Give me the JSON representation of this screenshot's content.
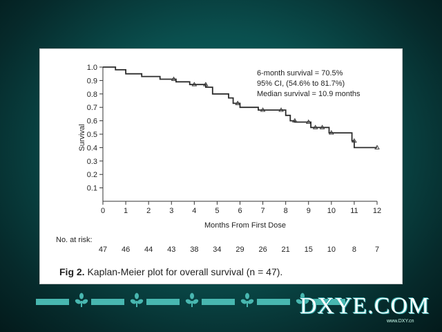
{
  "chart_data": {
    "type": "line",
    "step": true,
    "xlabel": "Months From First Dose",
    "ylabel": "Survival",
    "xlim": [
      0,
      12
    ],
    "ylim": [
      0,
      1.0
    ],
    "x_ticks": [
      0,
      1,
      2,
      3,
      4,
      5,
      6,
      7,
      8,
      9,
      10,
      11,
      12
    ],
    "y_ticks": [
      0.1,
      0.2,
      0.3,
      0.4,
      0.5,
      0.6,
      0.7,
      0.8,
      0.9,
      1.0
    ],
    "series": [
      {
        "points": [
          [
            0,
            1.0
          ],
          [
            0.55,
            1.0
          ],
          [
            0.55,
            0.98
          ],
          [
            1.0,
            0.98
          ],
          [
            1.0,
            0.95
          ],
          [
            1.7,
            0.95
          ],
          [
            1.7,
            0.93
          ],
          [
            2.5,
            0.93
          ],
          [
            2.5,
            0.91
          ],
          [
            3.2,
            0.91
          ],
          [
            3.2,
            0.89
          ],
          [
            3.8,
            0.89
          ],
          [
            3.8,
            0.87
          ],
          [
            4.5,
            0.87
          ],
          [
            4.5,
            0.85
          ],
          [
            4.8,
            0.85
          ],
          [
            4.8,
            0.8
          ],
          [
            5.5,
            0.8
          ],
          [
            5.5,
            0.77
          ],
          [
            5.7,
            0.77
          ],
          [
            5.7,
            0.73
          ],
          [
            6.0,
            0.73
          ],
          [
            6.0,
            0.7
          ],
          [
            6.8,
            0.7
          ],
          [
            6.8,
            0.68
          ],
          [
            8.0,
            0.68
          ],
          [
            8.0,
            0.64
          ],
          [
            8.2,
            0.64
          ],
          [
            8.2,
            0.6
          ],
          [
            8.4,
            0.6
          ],
          [
            8.4,
            0.59
          ],
          [
            9.1,
            0.59
          ],
          [
            9.1,
            0.55
          ],
          [
            9.9,
            0.55
          ],
          [
            9.9,
            0.51
          ],
          [
            10.9,
            0.51
          ],
          [
            10.9,
            0.45
          ],
          [
            11.0,
            0.45
          ],
          [
            11.0,
            0.4
          ],
          [
            12.0,
            0.4
          ]
        ],
        "censored": [
          [
            3.1,
            0.91
          ],
          [
            4.0,
            0.87
          ],
          [
            4.5,
            0.87
          ],
          [
            5.9,
            0.73
          ],
          [
            7.0,
            0.68
          ],
          [
            7.8,
            0.68
          ],
          [
            8.4,
            0.6
          ],
          [
            9.0,
            0.59
          ],
          [
            9.3,
            0.55
          ],
          [
            9.6,
            0.55
          ],
          [
            10.0,
            0.51
          ],
          [
            11.0,
            0.45
          ],
          [
            12.0,
            0.4
          ]
        ]
      }
    ],
    "annotation": [
      "6-month survival = 70.5%",
      "95% CI, (54.6% to 81.7%)",
      "Median survival = 10.9 months"
    ],
    "risk_table": {
      "label": "No. at risk:",
      "values": [
        "47",
        "46",
        "44",
        "43",
        "38",
        "34",
        "29",
        "26",
        "21",
        "15",
        "10",
        "8",
        "7"
      ]
    },
    "caption_bold": "Fig 2.",
    "caption_text": " Kaplan-Meier plot for overall survival (n = 47).",
    "line_color": "#2b2b2b"
  },
  "watermark": {
    "text": "DXYE.COM",
    "sub": "www.DXY.cn"
  }
}
